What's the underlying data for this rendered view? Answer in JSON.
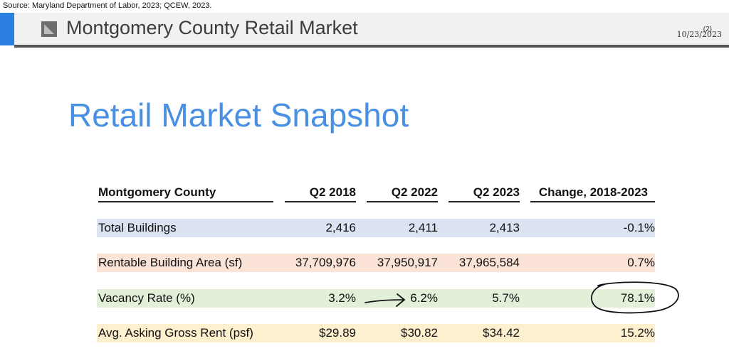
{
  "source": "Source: Maryland Department of Labor, 2023; QCEW, 2023.",
  "header": {
    "title": "Montgomery County Retail Market",
    "date": "10/23/2023",
    "page": "(2)",
    "accent_color": "#2a7fe0"
  },
  "slide_title": "Retail Market Snapshot",
  "table": {
    "columns": [
      "Montgomery County",
      "Q2 2018",
      "Q2 2022",
      "Q2 2023",
      "Change, 2018-2023"
    ],
    "rows": [
      {
        "label": "Total Buildings",
        "q2_2018": "2,416",
        "q2_2022": "2,411",
        "q2_2023": "2,413",
        "change": "-0.1%",
        "color": "#dbe3f3"
      },
      {
        "label": "Rentable Building Area (sf)",
        "q2_2018": "37,709,976",
        "q2_2022": "37,950,917",
        "q2_2023": "37,965,584",
        "change": "0.7%",
        "color": "#fbe3d8"
      },
      {
        "label": "Vacancy Rate (%)",
        "q2_2018": "3.2%",
        "q2_2022": "6.2%",
        "q2_2023": "5.7%",
        "change": "78.1%",
        "color": "#e2efd9"
      },
      {
        "label": "Avg. Asking Gross Rent (psf)",
        "q2_2018": "$29.89",
        "q2_2022": "$30.82",
        "q2_2023": "$34.42",
        "change": "15.2%",
        "color": "#fdf0cf"
      }
    ]
  }
}
